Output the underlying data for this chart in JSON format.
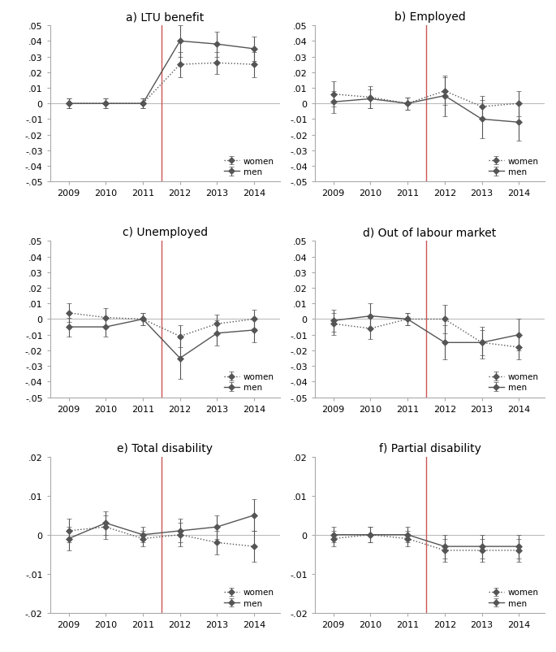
{
  "panels": [
    {
      "title": "a) LTU benefit",
      "ylim": [
        -0.05,
        0.05
      ],
      "yticks": [
        -0.05,
        -0.04,
        -0.03,
        -0.02,
        -0.01,
        0,
        0.01,
        0.02,
        0.03,
        0.04,
        0.05
      ],
      "ytick_labels": [
        "-.05",
        "-.04",
        "-.03",
        "-.02",
        "-.01",
        "0",
        ".01",
        ".02",
        ".03",
        ".04",
        ".05"
      ],
      "years": [
        2009,
        2010,
        2011,
        2012,
        2013,
        2014
      ],
      "women": {
        "y": [
          0.0,
          0.0,
          0.0,
          0.025,
          0.026,
          0.025
        ],
        "yerr": [
          0.003,
          0.003,
          0.003,
          0.008,
          0.007,
          0.008
        ]
      },
      "men": {
        "y": [
          0.0,
          0.0,
          0.0,
          0.04,
          0.038,
          0.035
        ],
        "yerr": [
          0.003,
          0.003,
          0.003,
          0.01,
          0.008,
          0.008
        ]
      }
    },
    {
      "title": "b) Employed",
      "ylim": [
        -0.05,
        0.05
      ],
      "yticks": [
        -0.05,
        -0.04,
        -0.03,
        -0.02,
        -0.01,
        0,
        0.01,
        0.02,
        0.03,
        0.04,
        0.05
      ],
      "ytick_labels": [
        "-.05",
        "-.04",
        "-.03",
        "-.02",
        "-.01",
        "0",
        ".01",
        ".02",
        ".03",
        ".04",
        ".05"
      ],
      "years": [
        2009,
        2010,
        2011,
        2012,
        2013,
        2014
      ],
      "women": {
        "y": [
          0.006,
          0.004,
          0.0,
          0.008,
          -0.002,
          0.0
        ],
        "yerr": [
          0.008,
          0.007,
          0.004,
          0.009,
          0.007,
          0.008
        ]
      },
      "men": {
        "y": [
          0.001,
          0.003,
          0.0,
          0.005,
          -0.01,
          -0.012
        ],
        "yerr": [
          0.007,
          0.006,
          0.004,
          0.013,
          0.012,
          0.012
        ]
      }
    },
    {
      "title": "c) Unemployed",
      "ylim": [
        -0.05,
        0.05
      ],
      "yticks": [
        -0.05,
        -0.04,
        -0.03,
        -0.02,
        -0.01,
        0,
        0.01,
        0.02,
        0.03,
        0.04,
        0.05
      ],
      "ytick_labels": [
        "-.05",
        "-.04",
        "-.03",
        "-.02",
        "-.01",
        "0",
        ".01",
        ".02",
        ".03",
        ".04",
        ".05"
      ],
      "years": [
        2009,
        2010,
        2011,
        2012,
        2013,
        2014
      ],
      "women": {
        "y": [
          0.004,
          0.001,
          0.0,
          -0.011,
          -0.003,
          0.0
        ],
        "yerr": [
          0.006,
          0.006,
          0.004,
          0.007,
          0.006,
          0.006
        ]
      },
      "men": {
        "y": [
          -0.005,
          -0.005,
          0.0,
          -0.025,
          -0.009,
          -0.007
        ],
        "yerr": [
          0.006,
          0.006,
          0.004,
          0.013,
          0.008,
          0.008
        ]
      }
    },
    {
      "title": "d) Out of labour market",
      "ylim": [
        -0.05,
        0.05
      ],
      "yticks": [
        -0.05,
        -0.04,
        -0.03,
        -0.02,
        -0.01,
        0,
        0.01,
        0.02,
        0.03,
        0.04,
        0.05
      ],
      "ytick_labels": [
        "-.05",
        "-.04",
        "-.03",
        "-.02",
        "-.01",
        "0",
        ".01",
        ".02",
        ".03",
        ".04",
        ".05"
      ],
      "years": [
        2009,
        2010,
        2011,
        2012,
        2013,
        2014
      ],
      "women": {
        "y": [
          -0.003,
          -0.006,
          0.0,
          0.0,
          -0.015,
          -0.018
        ],
        "yerr": [
          0.007,
          0.007,
          0.004,
          0.009,
          0.008,
          0.008
        ]
      },
      "men": {
        "y": [
          -0.001,
          0.002,
          0.0,
          -0.015,
          -0.015,
          -0.01
        ],
        "yerr": [
          0.007,
          0.008,
          0.004,
          0.011,
          0.01,
          0.01
        ]
      }
    },
    {
      "title": "e) Total disability",
      "ylim": [
        -0.02,
        0.02
      ],
      "yticks": [
        -0.02,
        -0.01,
        0,
        0.01,
        0.02
      ],
      "ytick_labels": [
        "-.02",
        "-.01",
        "0",
        ".01",
        ".02"
      ],
      "years": [
        2009,
        2010,
        2011,
        2012,
        2013,
        2014
      ],
      "women": {
        "y": [
          0.001,
          0.002,
          -0.001,
          0.0,
          -0.002,
          -0.003
        ],
        "yerr": [
          0.003,
          0.003,
          0.002,
          0.003,
          0.003,
          0.004
        ]
      },
      "men": {
        "y": [
          -0.001,
          0.003,
          0.0,
          0.001,
          0.002,
          0.005
        ],
        "yerr": [
          0.003,
          0.003,
          0.002,
          0.003,
          0.003,
          0.004
        ]
      }
    },
    {
      "title": "f) Partial disability",
      "ylim": [
        -0.02,
        0.02
      ],
      "yticks": [
        -0.02,
        -0.01,
        0,
        0.01,
        0.02
      ],
      "ytick_labels": [
        "-.02",
        "-.01",
        "0",
        ".01",
        ".02"
      ],
      "years": [
        2009,
        2010,
        2011,
        2012,
        2013,
        2014
      ],
      "women": {
        "y": [
          -0.001,
          0.0,
          -0.001,
          -0.004,
          -0.004,
          -0.004
        ],
        "yerr": [
          0.002,
          0.002,
          0.002,
          0.003,
          0.003,
          0.003
        ]
      },
      "men": {
        "y": [
          0.0,
          0.0,
          0.0,
          -0.003,
          -0.003,
          -0.003
        ],
        "yerr": [
          0.002,
          0.002,
          0.002,
          0.003,
          0.003,
          0.003
        ]
      }
    }
  ],
  "vline_x": 2011.5,
  "hline_y": 0,
  "women_color": "#888888",
  "men_color": "#444444",
  "marker_color": "#555555",
  "marker_size": 4,
  "capsize": 2,
  "linewidth": 1.0,
  "vline_color": "#cc5555",
  "hline_color": "#bbbbbb",
  "legend_women": "women",
  "legend_men": "men"
}
